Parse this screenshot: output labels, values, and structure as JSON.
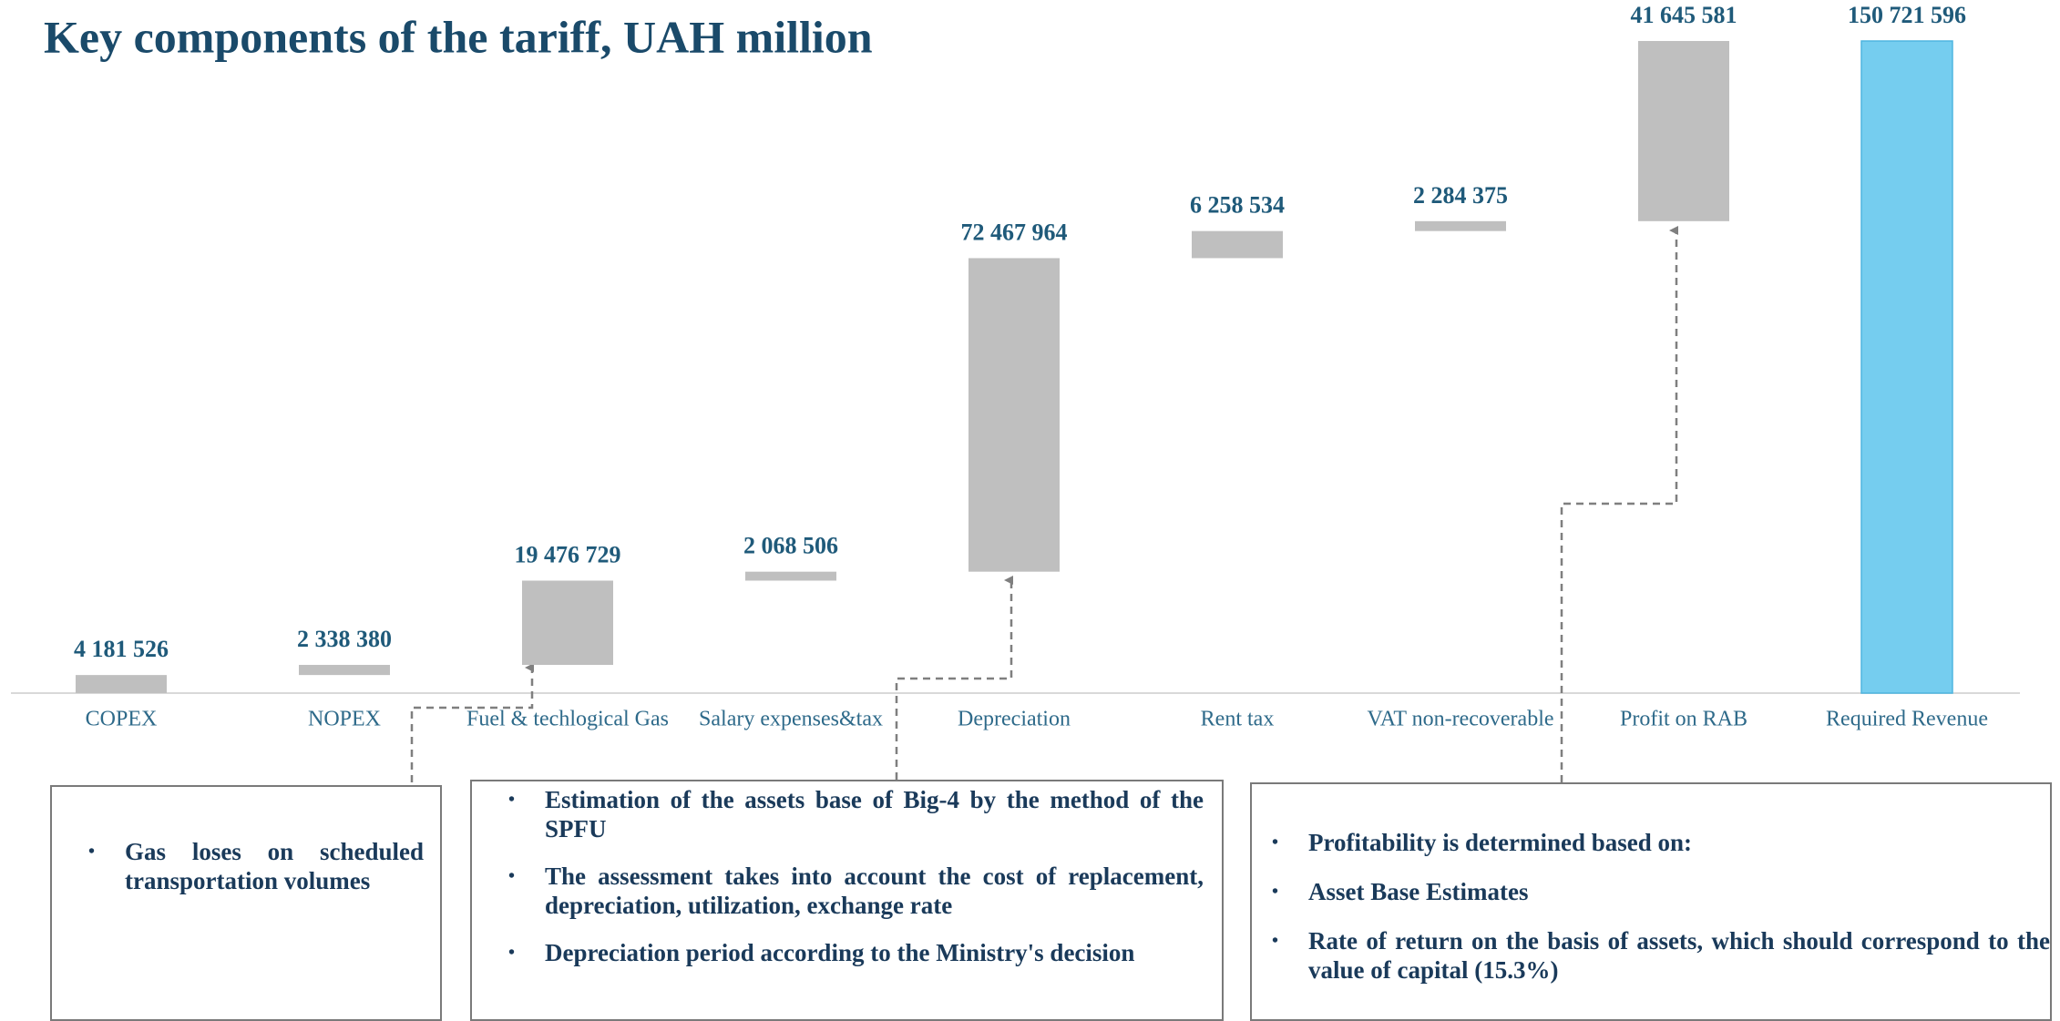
{
  "chart_data": {
    "type": "waterfall",
    "title": "Key components of the tariff, UAH million",
    "categories": [
      "COPEX",
      "NOPEX",
      "Fuel & techlogical Gas",
      "Salary expenses&tax",
      "Depreciation",
      "Rent tax",
      "VAT non-recoverable",
      "Profit on RAB",
      "Required Revenue"
    ],
    "values": [
      4181526,
      2338380,
      19476729,
      2068506,
      72467964,
      6258534,
      2284375,
      41645581,
      150721596
    ],
    "value_labels": [
      "4 181 526",
      "2 338 380",
      "19 476 729",
      "2 068 506",
      "72 467 964",
      "6 258 534",
      "2 284 375",
      "41 645 581",
      "150 721 596"
    ],
    "color": "#bfbfbf",
    "total_color": "#75cdef"
  },
  "boxes": [
    {
      "bullets": [
        "Gas loses on scheduled transportation volumes"
      ]
    },
    {
      "bullets": [
        "Estimation of the assets base of Big-4 by the method of the SPFU",
        "The assessment takes into account the cost of replacement, depreciation, utilization, exchange rate",
        "Depreciation period according to the Ministry's decision"
      ]
    },
    {
      "bullets": [
        "Profitability is determined based on:",
        "Asset Base Estimates",
        "Rate of return on the basis of assets, which should correspond to the value of capital (15.3%)"
      ]
    }
  ]
}
